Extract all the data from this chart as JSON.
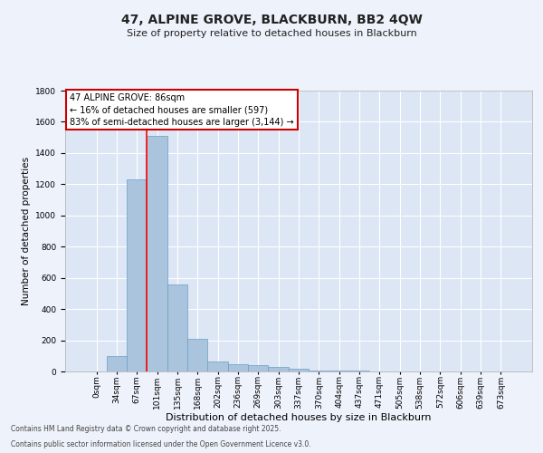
{
  "title": "47, ALPINE GROVE, BLACKBURN, BB2 4QW",
  "subtitle": "Size of property relative to detached houses in Blackburn",
  "xlabel": "Distribution of detached houses by size in Blackburn",
  "ylabel": "Number of detached properties",
  "bar_labels": [
    "0sqm",
    "34sqm",
    "67sqm",
    "101sqm",
    "135sqm",
    "168sqm",
    "202sqm",
    "236sqm",
    "269sqm",
    "303sqm",
    "337sqm",
    "370sqm",
    "404sqm",
    "437sqm",
    "471sqm",
    "505sqm",
    "538sqm",
    "572sqm",
    "606sqm",
    "639sqm",
    "673sqm"
  ],
  "bar_values": [
    0,
    100,
    1230,
    1510,
    560,
    210,
    65,
    45,
    40,
    30,
    20,
    5,
    5,
    5,
    0,
    0,
    0,
    0,
    0,
    0,
    0
  ],
  "bar_color": "#aac4de",
  "bar_edge_color": "#6a9fc0",
  "ylim": [
    0,
    1800
  ],
  "yticks": [
    0,
    200,
    400,
    600,
    800,
    1000,
    1200,
    1400,
    1600,
    1800
  ],
  "red_line_x": 2.5,
  "annotation_title": "47 ALPINE GROVE: 86sqm",
  "annotation_line1": "← 16% of detached houses are smaller (597)",
  "annotation_line2": "83% of semi-detached houses are larger (3,144) →",
  "annotation_box_facecolor": "#ffffff",
  "annotation_box_edgecolor": "#cc0000",
  "footnote1": "Contains HM Land Registry data © Crown copyright and database right 2025.",
  "footnote2": "Contains public sector information licensed under the Open Government Licence v3.0.",
  "background_color": "#eef2fb",
  "plot_bg_color": "#dce6f5",
  "grid_color": "#ffffff",
  "title_fontsize": 10,
  "subtitle_fontsize": 8,
  "xlabel_fontsize": 8,
  "ylabel_fontsize": 7.5,
  "tick_fontsize": 6.5,
  "annot_fontsize": 7,
  "footnote_fontsize": 5.5
}
